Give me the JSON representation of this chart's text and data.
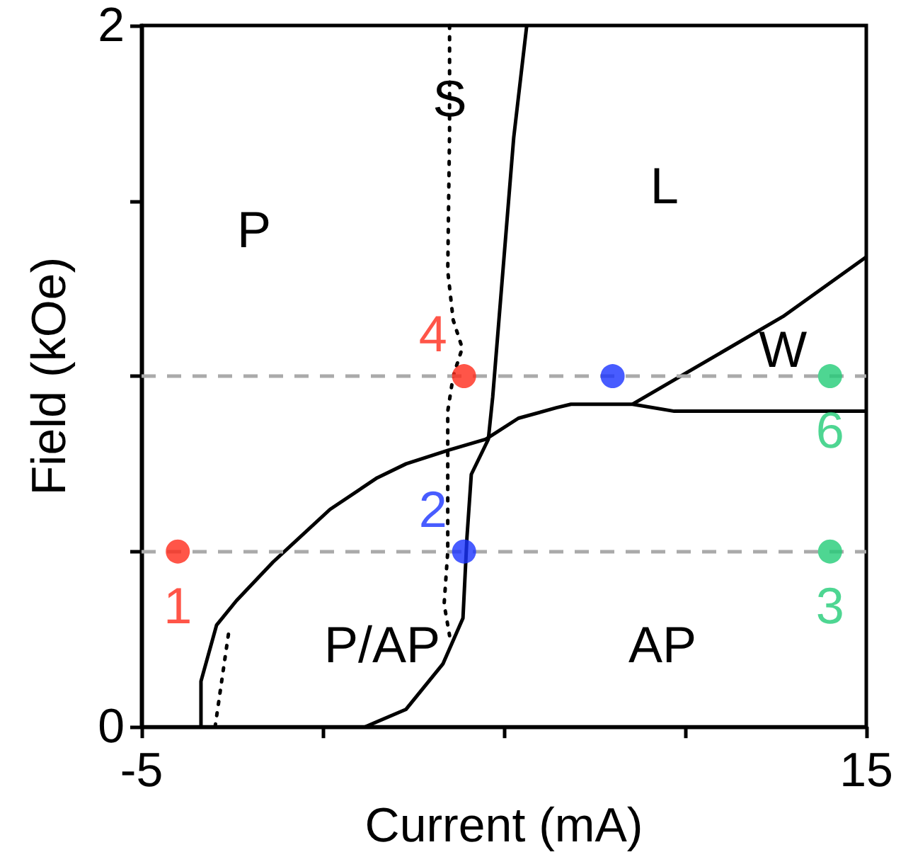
{
  "chart_data": {
    "type": "line",
    "xlabel": "Current (mA)",
    "ylabel": "Field (kOe)",
    "xlim": [
      -5,
      15
    ],
    "ylim": [
      0,
      2
    ],
    "xticks": [
      -5,
      {
        "value": 0,
        "label": null
      },
      {
        "value": 5,
        "label": null
      },
      {
        "value": 10,
        "label": null
      },
      15
    ],
    "yticks": [
      0,
      {
        "value": 0.5,
        "label": null
      },
      {
        "value": 1,
        "label": null
      },
      {
        "value": 1.5,
        "label": null
      },
      2
    ],
    "grid": false,
    "line_style": "solid",
    "marker": "none",
    "ref_lines": [
      {
        "axis": "y",
        "value": 1,
        "color": "#aaaaaa",
        "line_style": "dashed"
      },
      {
        "axis": "y",
        "value": 0.5,
        "color": "#aaaaaa",
        "line_style": "dashed"
      }
    ],
    "annotations": [
      "P",
      "P/AP",
      "AP",
      "L",
      "S",
      "W",
      {
        "text": "1",
        "x": -4,
        "y": 0.5
      },
      {
        "text": "2",
        "x": 3.9,
        "y": 0.5
      },
      {
        "text": "3",
        "x": 14,
        "y": 0.5
      },
      {
        "text": "4",
        "x": 3.9,
        "y": 1
      },
      {
        "text": "6",
        "x": 14,
        "y": 1
      }
    ],
    "series": [
      {
        "color": "#000000",
        "x": [
          -3.36,
          -3.36,
          -2.93,
          -2.38,
          -1.37,
          0.2,
          1.5,
          2.3,
          3.5,
          4.5,
          5.4,
          6.45,
          6.85,
          8.55,
          9.7,
          15
        ],
        "values": [
          0,
          0.13,
          0.29,
          0.36,
          0.47,
          0.62,
          0.71,
          0.75,
          0.79,
          0.82,
          0.88,
          0.91,
          0.92,
          0.92,
          0.9,
          0.9
        ]
      },
      {
        "color": "#000000",
        "x": [
          8.55,
          12.7,
          15
        ],
        "values": [
          0.92,
          1.17,
          1.34
        ]
      },
      {
        "color": "#000000",
        "x": [
          1.17,
          2.3,
          3.32,
          3.87,
          3.98,
          4.1,
          4.57,
          4.69,
          5.27,
          5.63
        ],
        "values": [
          0,
          0.05,
          0.18,
          0.31,
          0.54,
          0.72,
          0.82,
          0.94,
          1.68,
          2
        ]
      },
      {
        "color": "#000000",
        "line_style": "dotted",
        "x": [
          3.5,
          3.5,
          3.45,
          3.6,
          3.85,
          3.6,
          3.45,
          3.45,
          3.35,
          3.5
        ],
        "values": [
          2,
          1.7,
          1.3,
          1.16,
          1.08,
          1,
          0.9,
          0.5,
          0.35,
          0.26
        ]
      },
      {
        "color": "#000000",
        "line_style": "dotted",
        "x": [
          -2.97,
          -2.58
        ],
        "values": [
          0,
          0.28
        ]
      },
      {
        "type": "scatter",
        "marker": "circle",
        "color": "#ff2a1a",
        "x": [
          -4,
          3.9
        ],
        "values": [
          0.5,
          1
        ]
      },
      {
        "type": "scatter",
        "marker": "circle",
        "color": "#1a33ff",
        "x": [
          3.9,
          8
        ],
        "values": [
          0.5,
          1
        ]
      },
      {
        "type": "scatter",
        "marker": "circle",
        "color": "#22cc77",
        "x": [
          14,
          14
        ],
        "values": [
          0.5,
          1
        ]
      }
    ]
  }
}
